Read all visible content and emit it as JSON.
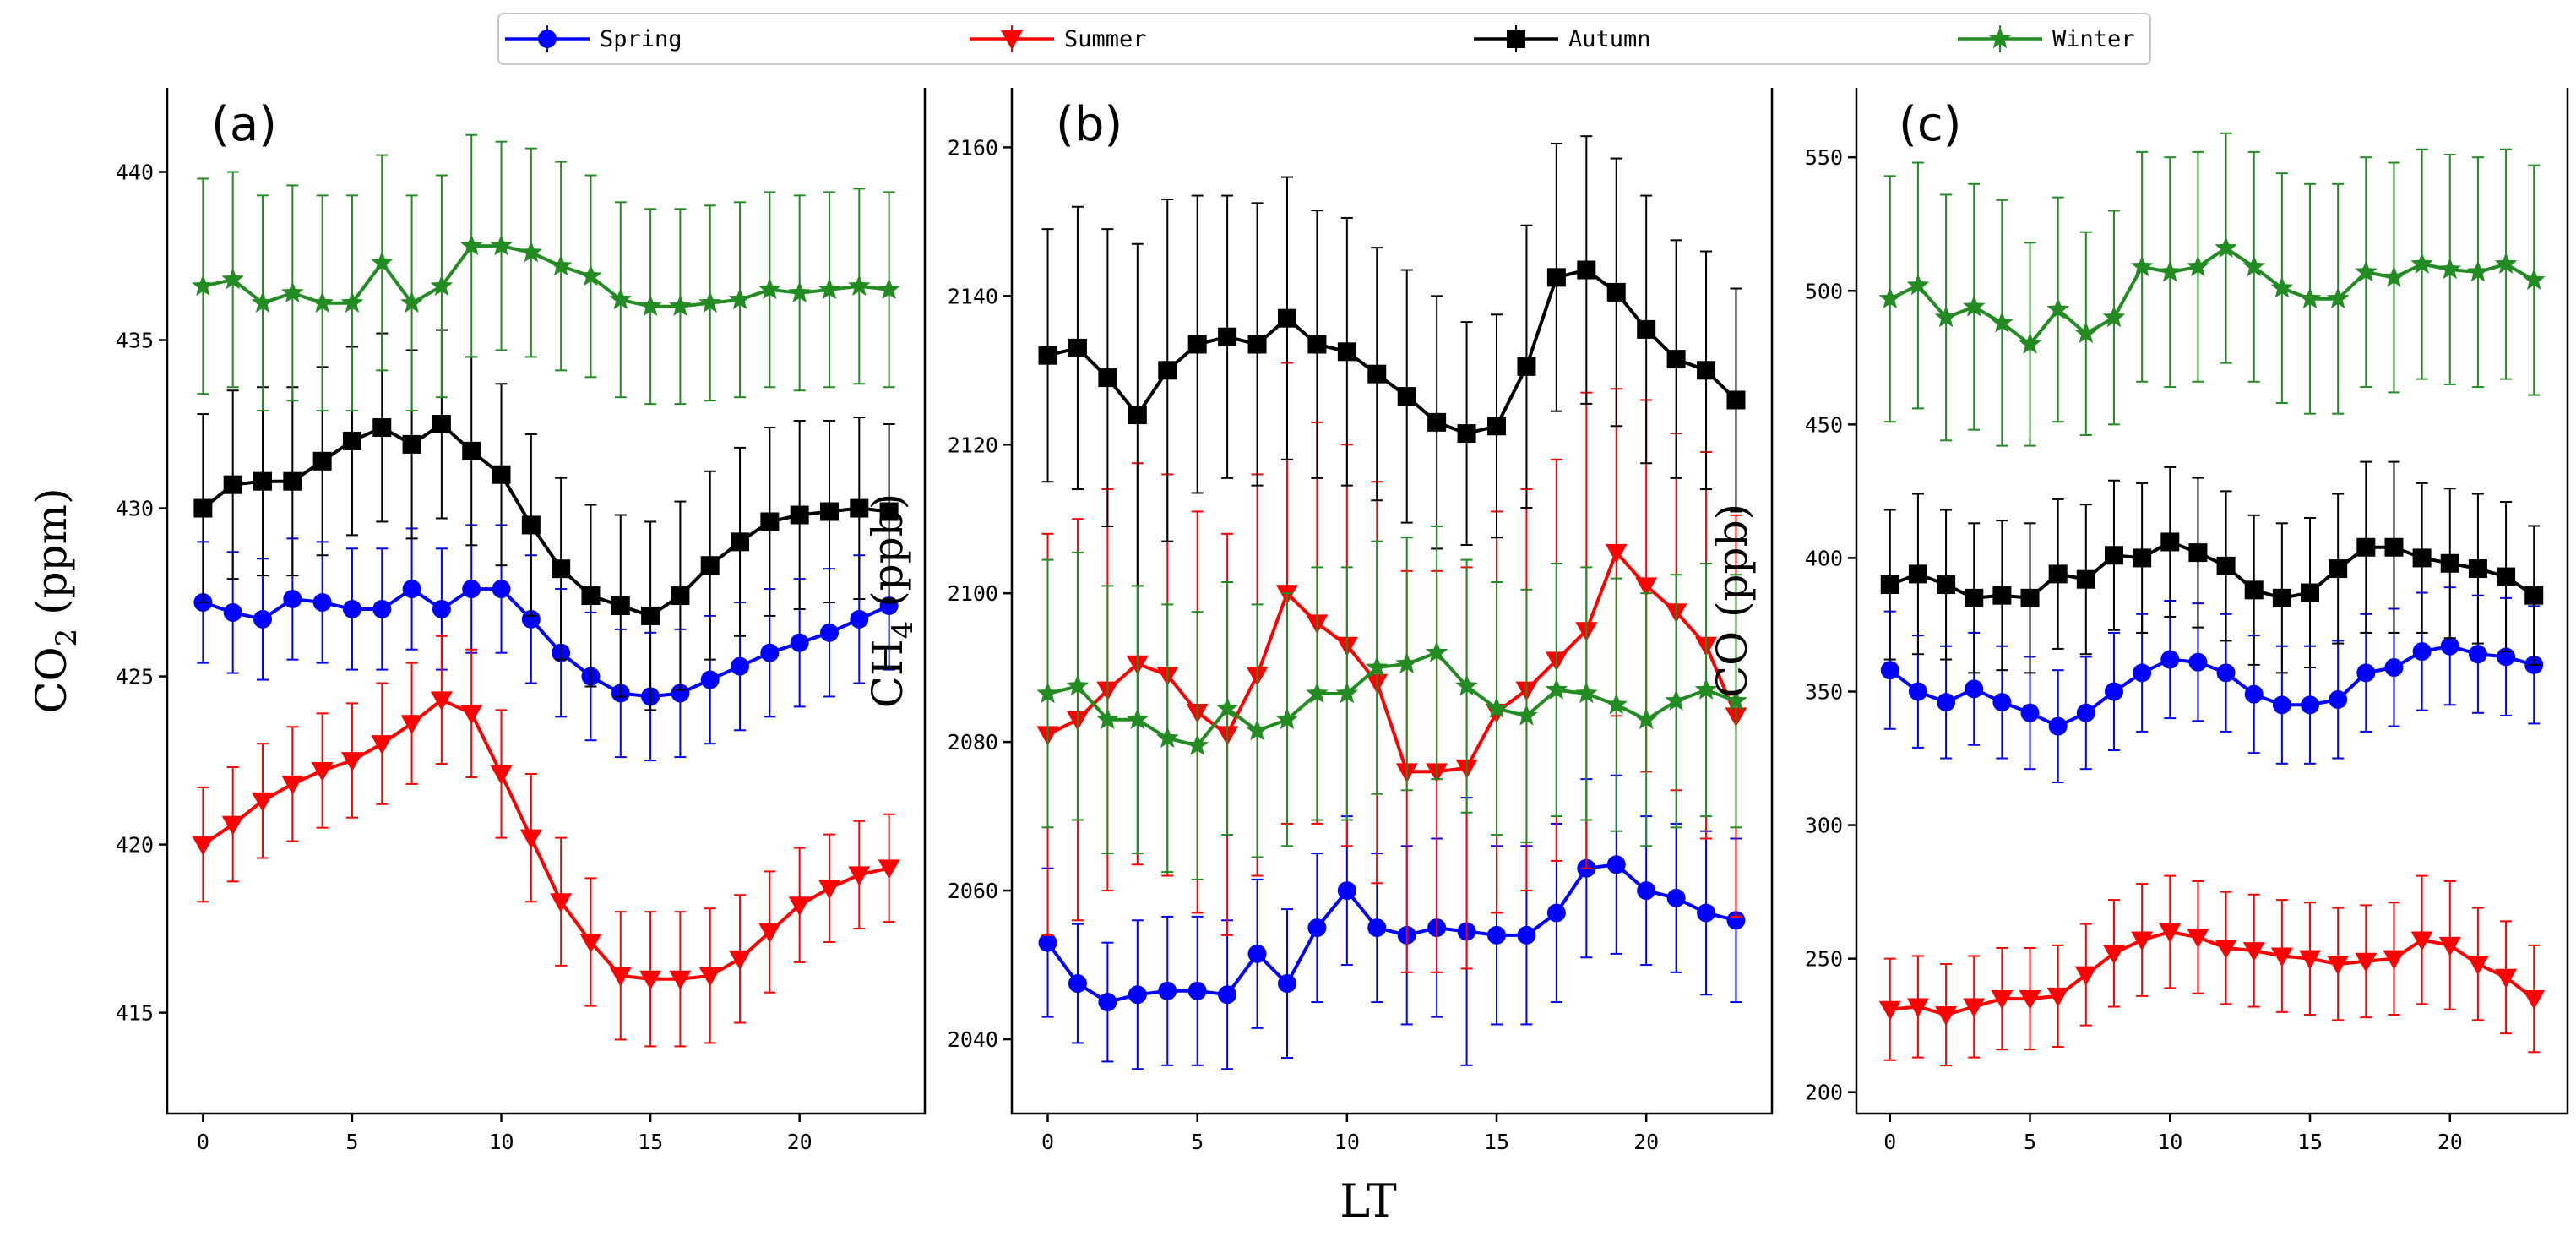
{
  "chart_data": {
    "type": "line",
    "legend": {
      "placement": "top-center",
      "entries": [
        {
          "name": "Spring",
          "color": "#0000ff",
          "marker": "circle"
        },
        {
          "name": "Summer",
          "color": "#ff0000",
          "marker": "triangle-down"
        },
        {
          "name": "Autumn",
          "color": "#000000",
          "marker": "square"
        },
        {
          "name": "Winter",
          "color": "#228b22",
          "marker": "star"
        }
      ]
    },
    "xlabel": "LT",
    "x": [
      0,
      1,
      2,
      3,
      4,
      5,
      6,
      7,
      8,
      9,
      10,
      11,
      12,
      13,
      14,
      15,
      16,
      17,
      18,
      19,
      20,
      21,
      22,
      23
    ],
    "xticks": [
      0,
      5,
      10,
      15,
      20
    ],
    "xlim": [
      -1.2,
      24.2
    ],
    "panels": [
      {
        "label": "(a)",
        "ylabel_main": "CO",
        "ylabel_sub": "2",
        "ylabel_tail": " (ppm)",
        "ylim": [
          412.0,
          442.5
        ],
        "yticks": [
          415,
          420,
          425,
          430,
          435,
          440
        ],
        "series": [
          {
            "name": "Spring",
            "values": [
              427.2,
              426.9,
              426.7,
              427.3,
              427.2,
              427.0,
              427.0,
              427.6,
              427.0,
              427.6,
              427.6,
              426.7,
              425.7,
              425.0,
              424.5,
              424.4,
              424.5,
              424.9,
              425.3,
              425.7,
              426.0,
              426.3,
              426.7,
              427.1
            ],
            "err": [
              1.8,
              1.8,
              1.8,
              1.8,
              1.8,
              1.8,
              1.8,
              1.8,
              1.8,
              1.9,
              1.9,
              1.9,
              1.9,
              1.9,
              1.9,
              1.9,
              1.9,
              1.9,
              1.9,
              1.9,
              1.9,
              1.9,
              1.9,
              1.9
            ]
          },
          {
            "name": "Summer",
            "values": [
              420.0,
              420.6,
              421.3,
              421.8,
              422.2,
              422.5,
              423.0,
              423.6,
              424.3,
              423.9,
              422.1,
              420.2,
              418.3,
              417.1,
              416.1,
              416.0,
              416.0,
              416.1,
              416.6,
              417.4,
              418.2,
              418.7,
              419.1,
              419.3
            ],
            "err": [
              1.7,
              1.7,
              1.7,
              1.7,
              1.7,
              1.7,
              1.8,
              1.8,
              1.9,
              1.9,
              1.9,
              1.9,
              1.9,
              1.9,
              1.9,
              2.0,
              2.0,
              2.0,
              1.9,
              1.8,
              1.7,
              1.6,
              1.6,
              1.6
            ]
          },
          {
            "name": "Autumn",
            "values": [
              430.0,
              430.7,
              430.8,
              430.8,
              431.4,
              432.0,
              432.4,
              431.9,
              432.5,
              431.7,
              431.0,
              429.5,
              428.2,
              427.4,
              427.1,
              426.8,
              427.4,
              428.3,
              429.0,
              429.6,
              429.8,
              429.9,
              430.0,
              429.9
            ],
            "err": [
              2.8,
              2.8,
              2.8,
              2.8,
              2.8,
              2.8,
              2.8,
              2.8,
              2.8,
              2.8,
              2.7,
              2.7,
              2.7,
              2.7,
              2.7,
              2.8,
              2.8,
              2.8,
              2.8,
              2.8,
              2.8,
              2.7,
              2.7,
              2.6
            ]
          },
          {
            "name": "Winter",
            "values": [
              436.6,
              436.8,
              436.1,
              436.4,
              436.1,
              436.1,
              437.3,
              436.1,
              436.6,
              437.8,
              437.8,
              437.6,
              437.2,
              436.9,
              436.2,
              436.0,
              436.0,
              436.1,
              436.2,
              436.5,
              436.4,
              436.5,
              436.6,
              436.5
            ],
            "err": [
              3.2,
              3.2,
              3.2,
              3.2,
              3.2,
              3.2,
              3.2,
              3.2,
              3.3,
              3.3,
              3.1,
              3.1,
              3.1,
              3.0,
              2.9,
              2.9,
              2.9,
              2.9,
              2.9,
              2.9,
              2.9,
              2.9,
              2.9,
              2.9
            ]
          }
        ]
      },
      {
        "label": "(b)",
        "ylabel_main": "CH",
        "ylabel_sub": "4",
        "ylabel_tail": " (ppb)",
        "ylim": [
          2030.0,
          2168.0
        ],
        "yticks": [
          2040,
          2060,
          2080,
          2100,
          2120,
          2140,
          2160
        ],
        "series": [
          {
            "name": "Spring",
            "values": [
              2053,
              2047.5,
              2045,
              2046,
              2046.5,
              2046.5,
              2046,
              2051.5,
              2047.5,
              2055,
              2060,
              2055,
              2054,
              2055,
              2054.5,
              2054,
              2054,
              2057,
              2063,
              2063.5,
              2060,
              2059,
              2057,
              2056
            ],
            "err": [
              10,
              8,
              8,
              10,
              10,
              10,
              10,
              10,
              10,
              10,
              10,
              10,
              12,
              12,
              18,
              12,
              12,
              12,
              12,
              12,
              10,
              10,
              11,
              11
            ]
          },
          {
            "name": "Summer",
            "values": [
              2081,
              2083,
              2087,
              2090.5,
              2089,
              2084,
              2081,
              2089,
              2100,
              2096,
              2093,
              2088,
              2076,
              2076,
              2076.5,
              2084,
              2087,
              2091,
              2095,
              2105.5,
              2101,
              2097.5,
              2093,
              2083.5
            ],
            "err": [
              27,
              27,
              27,
              27,
              27,
              27,
              27,
              27,
              31,
              27,
              27,
              27,
              27,
              27,
              27,
              27,
              27,
              27,
              32,
              22,
              25,
              24,
              26,
              27
            ]
          },
          {
            "name": "Autumn",
            "values": [
              2132,
              2133,
              2129,
              2124,
              2130,
              2133.5,
              2134.5,
              2133.5,
              2137,
              2133.5,
              2132.5,
              2129.5,
              2126.5,
              2123,
              2121.5,
              2122.5,
              2130.5,
              2142.5,
              2143.5,
              2140.5,
              2135.5,
              2131.5,
              2130,
              2126
            ],
            "err": [
              17,
              19,
              20,
              23,
              23,
              20,
              19,
              19,
              19,
              18,
              18,
              17,
              17,
              17,
              15,
              15,
              19,
              18,
              18,
              18,
              18,
              16,
              16,
              15
            ]
          },
          {
            "name": "Winter",
            "values": [
              2086.5,
              2087.5,
              2083,
              2083,
              2080.5,
              2079.5,
              2084.5,
              2081.5,
              2083,
              2086.5,
              2086.5,
              2090,
              2090.5,
              2092,
              2087.5,
              2084.5,
              2083.5,
              2087,
              2086.5,
              2085,
              2083,
              2085.5,
              2087,
              2085.5
            ],
            "err": [
              18,
              18,
              18,
              18,
              18,
              18,
              17,
              17,
              17,
              17,
              17,
              17,
              17,
              17,
              17,
              17,
              17,
              17,
              17,
              17,
              17,
              17,
              17,
              17
            ]
          }
        ]
      },
      {
        "label": "(c)",
        "ylabel_main": "CO (ppb)",
        "ylabel_sub": "",
        "ylabel_tail": "",
        "ylim": [
          192.0,
          576.0
        ],
        "yticks": [
          200,
          250,
          300,
          350,
          400,
          450,
          500,
          550
        ],
        "series": [
          {
            "name": "Spring",
            "values": [
              358,
              350,
              346,
              351,
              346,
              342,
              337,
              342,
              350,
              357,
              362,
              361,
              357,
              349,
              345,
              345,
              347,
              357,
              359,
              365,
              367,
              364,
              363,
              360
            ],
            "err": [
              22,
              21,
              21,
              21,
              21,
              21,
              21,
              21,
              22,
              22,
              22,
              22,
              22,
              22,
              22,
              22,
              22,
              22,
              22,
              22,
              22,
              22,
              22,
              22
            ]
          },
          {
            "name": "Summer",
            "values": [
              231,
              232,
              229,
              232,
              235,
              235,
              236,
              244,
              252,
              257,
              260,
              258,
              254,
              253,
              251,
              250,
              248,
              249,
              250,
              257,
              255,
              248,
              243,
              235
            ],
            "err": [
              19,
              19,
              19,
              19,
              19,
              19,
              19,
              19,
              20,
              21,
              21,
              21,
              21,
              21,
              21,
              21,
              21,
              21,
              21,
              24,
              24,
              21,
              21,
              20
            ]
          },
          {
            "name": "Autumn",
            "values": [
              390,
              394,
              390,
              385,
              386,
              385,
              394,
              392,
              401,
              400,
              406,
              402,
              397,
              388,
              385,
              387,
              396,
              404,
              404,
              400,
              398,
              396,
              393,
              386
            ],
            "err": [
              28,
              30,
              28,
              28,
              28,
              28,
              28,
              28,
              28,
              28,
              28,
              28,
              28,
              28,
              28,
              28,
              28,
              32,
              32,
              28,
              28,
              28,
              28,
              26
            ]
          },
          {
            "name": "Winter",
            "values": [
              497,
              502,
              490,
              494,
              488,
              480,
              493,
              484,
              490,
              509,
              507,
              509,
              516,
              509,
              501,
              497,
              497,
              507,
              505,
              510,
              508,
              507,
              510,
              504
            ],
            "err": [
              46,
              46,
              46,
              46,
              46,
              38,
              42,
              38,
              40,
              43,
              43,
              43,
              43,
              43,
              43,
              43,
              43,
              43,
              43,
              43,
              43,
              43,
              43,
              43
            ]
          }
        ]
      }
    ]
  }
}
